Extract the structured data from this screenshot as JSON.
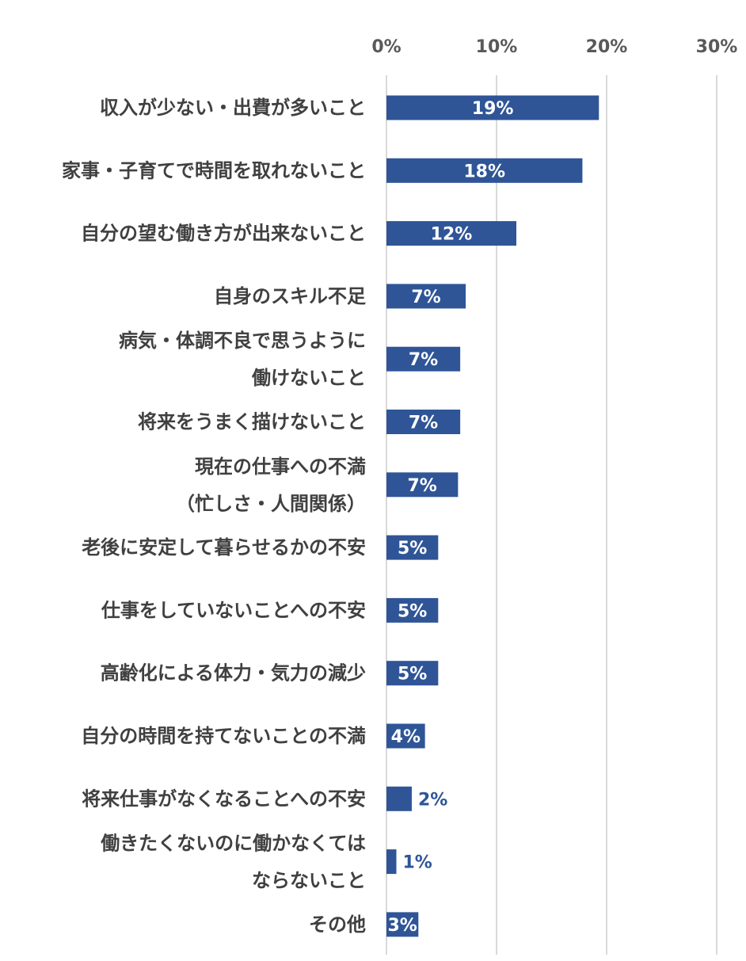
{
  "chart_data": {
    "type": "bar",
    "orientation": "horizontal",
    "title": "",
    "xlabel": "",
    "ylabel": "",
    "xlim": [
      0,
      30
    ],
    "x_ticks": [
      0,
      10,
      20,
      30
    ],
    "x_tick_labels": [
      "0%",
      "10%",
      "20%",
      "30%"
    ],
    "x_axis_position": "top",
    "grid": true,
    "legend": "none",
    "bar_color": "#2f5597",
    "grid_color": "#d9d9d9",
    "categories": [
      [
        "収入が少ない・出費が多いこと"
      ],
      [
        "家事・子育てで時間を取れないこと"
      ],
      [
        "自分の望む働き方が出来ないこと"
      ],
      [
        "自身のスキル不足"
      ],
      [
        "病気・体調不良で思うように",
        "働けないこと"
      ],
      [
        "将来をうまく描けないこと"
      ],
      [
        "現在の仕事への不満",
        "（忙しさ・人間関係）"
      ],
      [
        "老後に安定して暮らせるかの不安"
      ],
      [
        "仕事をしていないことへの不安"
      ],
      [
        "高齢化による体力・気力の減少"
      ],
      [
        "自分の時間を持てないことの不満"
      ],
      [
        "将来仕事がなくなることへの不安"
      ],
      [
        "働きたくないのに働かなくては",
        "ならないこと"
      ],
      [
        "その他"
      ]
    ],
    "values": [
      19.3,
      17.8,
      11.8,
      7.2,
      6.7,
      6.7,
      6.5,
      4.7,
      4.7,
      4.7,
      3.5,
      2.3,
      0.9,
      2.9
    ],
    "value_labels": [
      "19%",
      "18%",
      "12%",
      "7%",
      "7%",
      "7%",
      "7%",
      "5%",
      "5%",
      "5%",
      "4%",
      "2%",
      "1%",
      "3%"
    ],
    "label_inside": [
      true,
      true,
      true,
      true,
      true,
      true,
      true,
      true,
      true,
      true,
      true,
      false,
      false,
      true
    ]
  }
}
